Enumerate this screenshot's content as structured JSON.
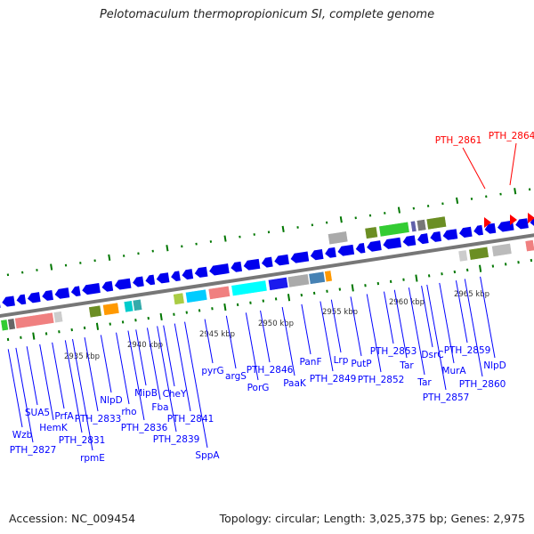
{
  "title": "Pelotomaculum thermopropionicum SI, complete genome",
  "footer": {
    "accession": "Accession: NC_009454",
    "summary": "Topology: circular; Length: 3,025,375 bp; Genes: 2,975"
  },
  "colors": {
    "gene_arrow": "#0000ee",
    "label": "#0000ff",
    "highlight": "#ff0000",
    "backbone": "#777777",
    "tick": "#007700"
  },
  "kbp_labels": [
    "2935 kbp",
    "2940 kbp",
    "2945 kbp",
    "2950 kbp",
    "2955 kbp",
    "2960 kbp",
    "2965 kbp"
  ],
  "gene_labels": [
    "Wzb",
    "PTH_2827",
    "SUA5",
    "HemK",
    "PrfA",
    "PTH_2831",
    "PTH_2833",
    "rpmE",
    "NlpD",
    "rho",
    "PTH_2836",
    "MipB",
    "Fba",
    "CheY",
    "PTH_2839",
    "PTH_2841",
    "SppA",
    "pyrG",
    "argS",
    "PTH_2846",
    "PorG",
    "PaaK",
    "PanF",
    "PTH_2849",
    "Lrp",
    "PutP",
    "PTH_2852",
    "PTH_2853",
    "Tar",
    "Tar",
    "DsrC",
    "PTH_2857",
    "MurA",
    "PTH_2859",
    "PTH_2860",
    "NlpD"
  ],
  "highlight_labels": [
    "PTH_2861",
    "PTH_2864"
  ]
}
